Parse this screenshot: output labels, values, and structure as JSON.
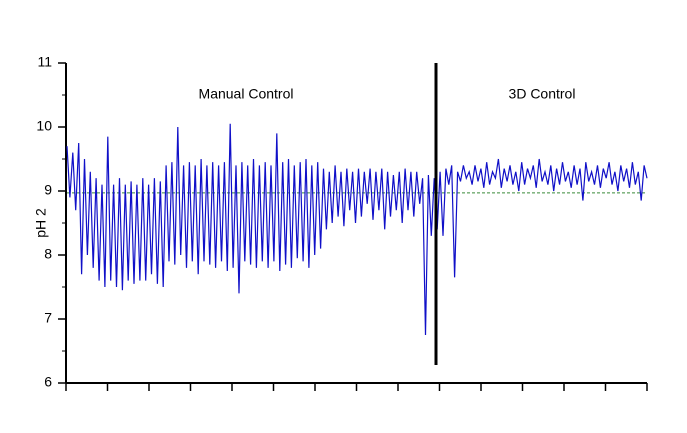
{
  "chart_data": {
    "type": "line",
    "y_label": "pH 2",
    "annotations": [
      "Manual Control",
      "3D Control"
    ],
    "color": "#1010c8",
    "setpoint": 8.97,
    "setpoint_color": "#3a8a3a",
    "ylim": [
      6,
      11
    ],
    "yticks": [
      6,
      7,
      8,
      9,
      10,
      11
    ],
    "values": [
      9.7,
      8.9,
      9.6,
      8.7,
      9.75,
      7.7,
      9.5,
      8.0,
      9.3,
      7.8,
      9.2,
      7.6,
      9.1,
      7.5,
      9.85,
      7.6,
      9.1,
      7.5,
      9.2,
      7.45,
      9.1,
      7.6,
      9.15,
      7.55,
      9.1,
      7.6,
      9.2,
      7.6,
      9.1,
      7.7,
      9.2,
      7.55,
      9.15,
      7.5,
      9.4,
      7.9,
      9.45,
      7.85,
      10.0,
      8.0,
      9.4,
      7.8,
      9.45,
      7.9,
      9.4,
      7.7,
      9.5,
      7.9,
      9.4,
      7.85,
      9.45,
      7.8,
      9.4,
      7.9,
      9.45,
      7.75,
      10.05,
      7.8,
      9.4,
      7.4,
      9.45,
      7.9,
      9.4,
      7.85,
      9.5,
      7.8,
      9.4,
      7.9,
      9.45,
      7.8,
      9.4,
      7.9,
      9.9,
      7.75,
      9.45,
      7.85,
      9.5,
      7.8,
      9.4,
      7.95,
      9.45,
      7.9,
      9.5,
      7.8,
      9.4,
      8.0,
      9.45,
      8.1,
      9.35,
      8.4,
      9.3,
      8.5,
      9.4,
      8.6,
      9.3,
      8.45,
      9.35,
      8.7,
      9.3,
      8.5,
      9.35,
      8.6,
      9.3,
      8.8,
      9.35,
      8.55,
      9.3,
      8.7,
      9.35,
      8.4,
      9.3,
      8.6,
      9.25,
      8.7,
      9.3,
      8.5,
      9.35,
      8.7,
      9.3,
      8.6,
      9.3,
      8.8,
      9.2,
      6.75,
      9.25,
      8.3,
      9.2,
      8.4,
      9.3,
      8.3,
      9.35,
      9.1,
      9.4,
      7.65,
      9.3,
      9.15,
      9.4,
      9.2,
      9.3,
      9.1,
      9.4,
      9.15,
      9.35,
      9.05,
      9.45,
      9.1,
      9.3,
      9.2,
      9.5,
      9.05,
      9.35,
      9.15,
      9.4,
      9.1,
      9.3,
      9.0,
      9.45,
      9.1,
      9.35,
      9.2,
      9.4,
      9.05,
      9.5,
      9.15,
      9.3,
      9.1,
      9.4,
      9.0,
      9.35,
      9.1,
      9.45,
      9.15,
      9.3,
      9.05,
      9.4,
      9.1,
      9.35,
      8.85,
      9.45,
      9.15,
      9.3,
      9.1,
      9.4,
      9.05,
      9.35,
      9.2,
      9.45,
      9.1,
      9.3,
      9.0,
      9.4,
      9.15,
      9.35,
      9.05,
      9.45,
      9.1,
      9.3,
      8.85,
      9.4,
      9.2
    ]
  }
}
